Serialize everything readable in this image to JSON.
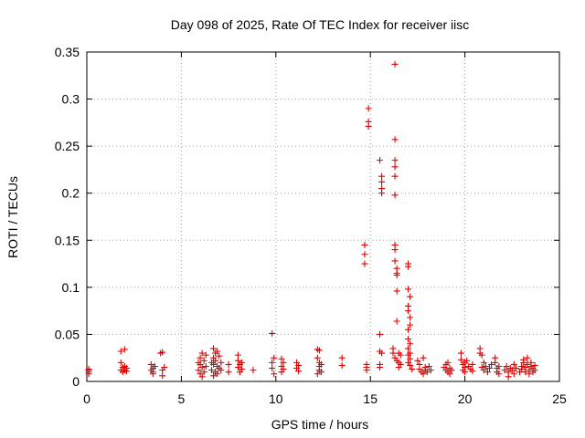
{
  "chart_data": {
    "type": "scatter",
    "title": "Day 098 of 2025, Rate Of TEC Index for receiver iisc",
    "xlabel": "GPS time / hours",
    "ylabel": "ROTI / TECUs",
    "xlim": [
      0,
      25
    ],
    "ylim": [
      0,
      0.35
    ],
    "xticks": [
      0,
      5,
      10,
      15,
      20,
      25
    ],
    "xtick_labels": [
      "0",
      "5",
      "10",
      "15",
      "20",
      "25"
    ],
    "yticks": [
      0,
      0.05,
      0.1,
      0.15,
      0.2,
      0.25,
      0.3,
      0.35
    ],
    "ytick_labels": [
      "0",
      "0.05",
      "0.1",
      "0.15",
      "0.2",
      "0.25",
      "0.3",
      "0.35"
    ],
    "grid": true,
    "marker": "plus",
    "color": "#e00000",
    "points": [
      [
        0.1,
        0.012
      ],
      [
        0.1,
        0.01
      ],
      [
        0.1,
        0.008
      ],
      [
        0.1,
        0.013
      ],
      [
        1.8,
        0.032
      ],
      [
        1.8,
        0.02
      ],
      [
        1.8,
        0.012
      ],
      [
        1.9,
        0.01
      ],
      [
        2.0,
        0.034
      ],
      [
        2.0,
        0.016
      ],
      [
        2.0,
        0.012
      ],
      [
        2.1,
        0.014
      ],
      [
        2.1,
        0.011
      ],
      [
        1.9,
        0.015
      ],
      [
        3.4,
        0.018
      ],
      [
        3.4,
        0.012
      ],
      [
        3.5,
        0.01
      ],
      [
        3.5,
        0.014
      ],
      [
        3.6,
        0.016
      ],
      [
        3.5,
        0.008
      ],
      [
        3.9,
        0.03
      ],
      [
        4.0,
        0.031
      ],
      [
        4.0,
        0.012
      ],
      [
        4.0,
        0.006
      ],
      [
        4.1,
        0.015
      ],
      [
        5.9,
        0.012
      ],
      [
        5.9,
        0.02
      ],
      [
        6.0,
        0.018
      ],
      [
        6.0,
        0.025
      ],
      [
        6.0,
        0.008
      ],
      [
        6.1,
        0.03
      ],
      [
        6.1,
        0.015
      ],
      [
        6.2,
        0.022
      ],
      [
        6.2,
        0.01
      ],
      [
        6.3,
        0.016
      ],
      [
        6.3,
        0.028
      ],
      [
        6.1,
        0.005
      ],
      [
        6.6,
        0.02
      ],
      [
        6.6,
        0.012
      ],
      [
        6.7,
        0.035
      ],
      [
        6.7,
        0.025
      ],
      [
        6.7,
        0.018
      ],
      [
        6.8,
        0.03
      ],
      [
        6.8,
        0.01
      ],
      [
        6.8,
        0.022
      ],
      [
        6.9,
        0.016
      ],
      [
        6.9,
        0.008
      ],
      [
        7.0,
        0.027
      ],
      [
        7.0,
        0.014
      ],
      [
        7.1,
        0.02
      ],
      [
        7.1,
        0.012
      ],
      [
        6.7,
        0.006
      ],
      [
        6.9,
        0.032
      ],
      [
        7.5,
        0.01
      ],
      [
        7.5,
        0.018
      ],
      [
        8.0,
        0.015
      ],
      [
        8.0,
        0.022
      ],
      [
        8.0,
        0.028
      ],
      [
        8.1,
        0.01
      ],
      [
        8.1,
        0.018
      ],
      [
        8.2,
        0.02
      ],
      [
        8.2,
        0.013
      ],
      [
        8.8,
        0.012
      ],
      [
        9.8,
        0.051
      ],
      [
        9.8,
        0.02
      ],
      [
        9.8,
        0.014
      ],
      [
        9.9,
        0.025
      ],
      [
        9.9,
        0.008
      ],
      [
        10.3,
        0.024
      ],
      [
        10.3,
        0.016
      ],
      [
        10.3,
        0.01
      ],
      [
        10.4,
        0.02
      ],
      [
        10.4,
        0.013
      ],
      [
        11.1,
        0.02
      ],
      [
        11.1,
        0.014
      ],
      [
        11.2,
        0.011
      ],
      [
        11.2,
        0.017
      ],
      [
        12.2,
        0.034
      ],
      [
        12.3,
        0.033
      ],
      [
        12.2,
        0.025
      ],
      [
        12.3,
        0.02
      ],
      [
        12.3,
        0.016
      ],
      [
        12.3,
        0.012
      ],
      [
        12.4,
        0.01
      ],
      [
        12.4,
        0.018
      ],
      [
        12.2,
        0.008
      ],
      [
        13.5,
        0.025
      ],
      [
        13.5,
        0.017
      ],
      [
        14.7,
        0.145
      ],
      [
        14.7,
        0.135
      ],
      [
        14.7,
        0.125
      ],
      [
        14.8,
        0.015
      ],
      [
        14.8,
        0.012
      ],
      [
        14.8,
        0.018
      ],
      [
        14.9,
        0.29
      ],
      [
        14.9,
        0.276
      ],
      [
        14.9,
        0.271
      ],
      [
        15.5,
        0.235
      ],
      [
        15.6,
        0.218
      ],
      [
        15.6,
        0.212
      ],
      [
        15.6,
        0.205
      ],
      [
        15.6,
        0.2
      ],
      [
        15.5,
        0.05
      ],
      [
        15.5,
        0.032
      ],
      [
        15.6,
        0.03
      ],
      [
        15.5,
        0.018
      ],
      [
        15.5,
        0.015
      ],
      [
        16.3,
        0.337
      ],
      [
        16.3,
        0.257
      ],
      [
        16.3,
        0.235
      ],
      [
        16.3,
        0.228
      ],
      [
        16.3,
        0.218
      ],
      [
        16.3,
        0.198
      ],
      [
        16.3,
        0.145
      ],
      [
        16.3,
        0.14
      ],
      [
        16.3,
        0.128
      ],
      [
        16.4,
        0.12
      ],
      [
        16.4,
        0.115
      ],
      [
        16.4,
        0.113
      ],
      [
        16.4,
        0.096
      ],
      [
        16.4,
        0.064
      ],
      [
        16.2,
        0.035
      ],
      [
        16.2,
        0.03
      ],
      [
        16.3,
        0.025
      ],
      [
        16.4,
        0.022
      ],
      [
        16.5,
        0.03
      ],
      [
        16.5,
        0.02
      ],
      [
        16.6,
        0.028
      ],
      [
        16.6,
        0.018
      ],
      [
        16.5,
        0.015
      ],
      [
        17.0,
        0.125
      ],
      [
        17.0,
        0.122
      ],
      [
        17.0,
        0.098
      ],
      [
        17.1,
        0.09
      ],
      [
        17.0,
        0.08
      ],
      [
        17.0,
        0.075
      ],
      [
        17.1,
        0.068
      ],
      [
        17.1,
        0.06
      ],
      [
        17.0,
        0.055
      ],
      [
        17.0,
        0.045
      ],
      [
        17.1,
        0.04
      ],
      [
        17.0,
        0.035
      ],
      [
        17.1,
        0.03
      ],
      [
        17.0,
        0.028
      ],
      [
        17.1,
        0.024
      ],
      [
        17.0,
        0.02
      ],
      [
        17.1,
        0.017
      ],
      [
        17.2,
        0.013
      ],
      [
        17.5,
        0.022
      ],
      [
        17.6,
        0.018
      ],
      [
        17.6,
        0.013
      ],
      [
        17.7,
        0.01
      ],
      [
        17.8,
        0.025
      ],
      [
        17.8,
        0.008
      ],
      [
        17.9,
        0.015
      ],
      [
        17.9,
        0.012
      ],
      [
        18.0,
        0.01
      ],
      [
        18.1,
        0.016
      ],
      [
        18.2,
        0.012
      ],
      [
        18.9,
        0.015
      ],
      [
        19.0,
        0.018
      ],
      [
        19.0,
        0.012
      ],
      [
        19.1,
        0.01
      ],
      [
        19.1,
        0.02
      ],
      [
        19.2,
        0.014
      ],
      [
        19.2,
        0.008
      ],
      [
        19.3,
        0.012
      ],
      [
        19.8,
        0.03
      ],
      [
        19.8,
        0.023
      ],
      [
        19.9,
        0.018
      ],
      [
        19.9,
        0.012
      ],
      [
        20.0,
        0.02
      ],
      [
        20.0,
        0.015
      ],
      [
        20.0,
        0.01
      ],
      [
        20.1,
        0.022
      ],
      [
        20.2,
        0.016
      ],
      [
        20.3,
        0.013
      ],
      [
        20.4,
        0.018
      ],
      [
        20.4,
        0.011
      ],
      [
        20.8,
        0.035
      ],
      [
        20.8,
        0.03
      ],
      [
        20.9,
        0.028
      ],
      [
        20.9,
        0.015
      ],
      [
        21.0,
        0.012
      ],
      [
        21.0,
        0.02
      ],
      [
        21.1,
        0.016
      ],
      [
        21.2,
        0.01
      ],
      [
        21.3,
        0.014
      ],
      [
        21.4,
        0.018
      ],
      [
        21.6,
        0.025
      ],
      [
        21.6,
        0.02
      ],
      [
        21.7,
        0.014
      ],
      [
        21.7,
        0.01
      ],
      [
        21.8,
        0.016
      ],
      [
        21.8,
        0.008
      ],
      [
        22.1,
        0.012
      ],
      [
        22.2,
        0.016
      ],
      [
        22.3,
        0.01
      ],
      [
        22.3,
        0.005
      ],
      [
        22.4,
        0.014
      ],
      [
        22.5,
        0.012
      ],
      [
        22.6,
        0.018
      ],
      [
        22.6,
        0.008
      ],
      [
        22.7,
        0.014
      ],
      [
        22.9,
        0.01
      ],
      [
        23.0,
        0.016
      ],
      [
        23.0,
        0.013
      ],
      [
        23.1,
        0.023
      ],
      [
        23.1,
        0.02
      ],
      [
        23.2,
        0.015
      ],
      [
        23.2,
        0.01
      ],
      [
        23.3,
        0.025
      ],
      [
        23.3,
        0.018
      ],
      [
        23.4,
        0.012
      ],
      [
        23.4,
        0.008
      ],
      [
        23.5,
        0.016
      ],
      [
        23.5,
        0.02
      ],
      [
        23.6,
        0.014
      ],
      [
        23.6,
        0.01
      ],
      [
        23.7,
        0.017
      ],
      [
        23.7,
        0.012
      ]
    ]
  }
}
